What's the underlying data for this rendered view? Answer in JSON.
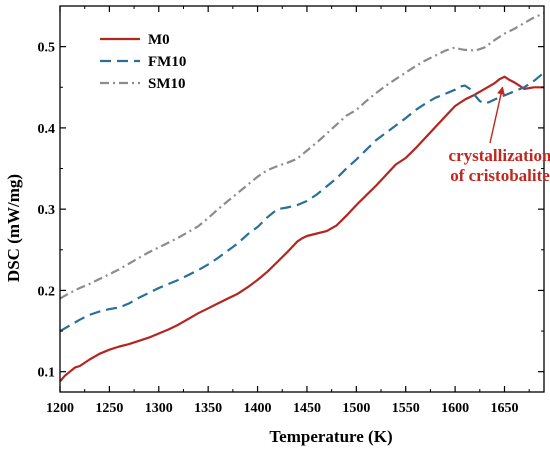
{
  "chart_data": {
    "type": "line",
    "xlabel": "Temperature (K)",
    "ylabel": "DSC (mW/mg)",
    "xlim": [
      1200,
      1690
    ],
    "ylim": [
      0.075,
      0.55
    ],
    "xticks": [
      "1200",
      "1250",
      "1300",
      "1350",
      "1400",
      "1450",
      "1500",
      "1550",
      "1600",
      "1650"
    ],
    "yticks": [
      "0.1",
      "0.2",
      "0.3",
      "0.4",
      "0.5"
    ],
    "grid": false,
    "legend_position": "top-left",
    "series": [
      {
        "name": "M0",
        "color": "#b5251f",
        "style": "solid",
        "x": [
          1200,
          1205,
          1210,
          1215,
          1220,
          1230,
          1240,
          1250,
          1260,
          1270,
          1280,
          1290,
          1300,
          1310,
          1320,
          1330,
          1340,
          1350,
          1360,
          1370,
          1380,
          1390,
          1400,
          1410,
          1420,
          1430,
          1440,
          1445,
          1450,
          1460,
          1470,
          1480,
          1490,
          1500,
          1510,
          1520,
          1530,
          1540,
          1550,
          1560,
          1570,
          1580,
          1590,
          1600,
          1610,
          1620,
          1630,
          1640,
          1645,
          1650,
          1655,
          1660,
          1665,
          1670,
          1675,
          1680,
          1690
        ],
        "values": [
          0.088,
          0.095,
          0.1,
          0.105,
          0.107,
          0.115,
          0.122,
          0.127,
          0.131,
          0.134,
          0.138,
          0.142,
          0.147,
          0.152,
          0.158,
          0.165,
          0.172,
          0.178,
          0.184,
          0.19,
          0.196,
          0.204,
          0.213,
          0.223,
          0.235,
          0.247,
          0.26,
          0.264,
          0.267,
          0.27,
          0.273,
          0.28,
          0.292,
          0.305,
          0.317,
          0.329,
          0.342,
          0.355,
          0.363,
          0.375,
          0.388,
          0.401,
          0.414,
          0.427,
          0.435,
          0.441,
          0.448,
          0.455,
          0.46,
          0.463,
          0.459,
          0.456,
          0.452,
          0.448,
          0.449,
          0.45,
          0.45
        ]
      },
      {
        "name": "FM10",
        "color": "#2a6f96",
        "style": "dash",
        "x": [
          1200,
          1210,
          1220,
          1230,
          1240,
          1250,
          1260,
          1270,
          1280,
          1290,
          1300,
          1310,
          1320,
          1330,
          1340,
          1350,
          1360,
          1370,
          1380,
          1390,
          1400,
          1410,
          1420,
          1430,
          1440,
          1450,
          1460,
          1470,
          1480,
          1490,
          1500,
          1510,
          1520,
          1530,
          1540,
          1550,
          1560,
          1570,
          1580,
          1590,
          1600,
          1605,
          1610,
          1615,
          1620,
          1625,
          1630,
          1635,
          1640,
          1650,
          1660,
          1670,
          1680,
          1690
        ],
        "values": [
          0.15,
          0.157,
          0.164,
          0.17,
          0.174,
          0.177,
          0.179,
          0.184,
          0.191,
          0.197,
          0.203,
          0.208,
          0.213,
          0.219,
          0.225,
          0.232,
          0.24,
          0.249,
          0.258,
          0.269,
          0.278,
          0.29,
          0.3,
          0.302,
          0.305,
          0.31,
          0.318,
          0.328,
          0.338,
          0.35,
          0.361,
          0.373,
          0.385,
          0.394,
          0.403,
          0.412,
          0.422,
          0.43,
          0.437,
          0.442,
          0.447,
          0.451,
          0.452,
          0.448,
          0.44,
          0.433,
          0.43,
          0.432,
          0.435,
          0.44,
          0.445,
          0.45,
          0.458,
          0.468
        ]
      },
      {
        "name": "SM10",
        "color": "#8c8c8c",
        "style": "dashdot",
        "x": [
          1200,
          1210,
          1220,
          1230,
          1240,
          1250,
          1260,
          1270,
          1280,
          1290,
          1300,
          1310,
          1320,
          1330,
          1340,
          1350,
          1360,
          1370,
          1380,
          1390,
          1400,
          1410,
          1420,
          1430,
          1440,
          1450,
          1460,
          1470,
          1480,
          1490,
          1500,
          1510,
          1520,
          1530,
          1540,
          1550,
          1560,
          1570,
          1580,
          1590,
          1600,
          1605,
          1610,
          1615,
          1620,
          1630,
          1640,
          1650,
          1660,
          1670,
          1680,
          1690
        ],
        "values": [
          0.19,
          0.197,
          0.203,
          0.208,
          0.214,
          0.22,
          0.226,
          0.233,
          0.24,
          0.247,
          0.253,
          0.259,
          0.265,
          0.272,
          0.279,
          0.289,
          0.3,
          0.31,
          0.32,
          0.33,
          0.34,
          0.348,
          0.353,
          0.357,
          0.362,
          0.372,
          0.382,
          0.393,
          0.404,
          0.415,
          0.422,
          0.433,
          0.443,
          0.452,
          0.46,
          0.468,
          0.476,
          0.483,
          0.489,
          0.495,
          0.499,
          0.497,
          0.496,
          0.496,
          0.495,
          0.499,
          0.508,
          0.516,
          0.522,
          0.529,
          0.536,
          0.541
        ]
      }
    ],
    "annotation": {
      "lines": [
        "crystallization",
        "of cristobalite"
      ],
      "color": "#c0281f",
      "target_x": 1647,
      "target_y": 0.461
    }
  }
}
